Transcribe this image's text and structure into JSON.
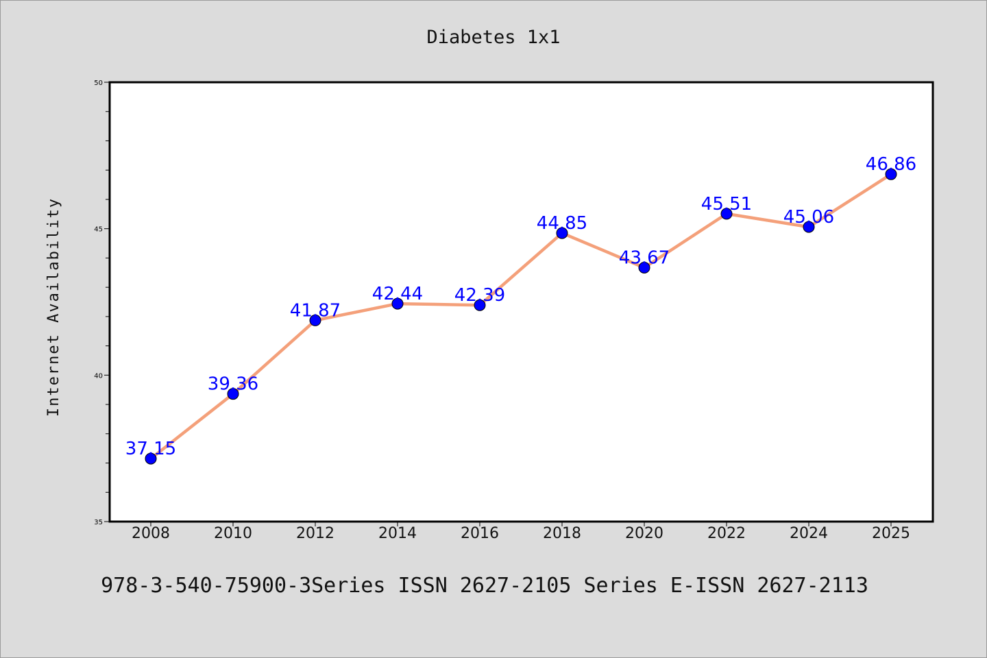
{
  "chart_data": {
    "type": "line",
    "title": "Diabetes 1x1",
    "xlabel": "",
    "ylabel": "Internet Availability",
    "categories": [
      "2008",
      "2010",
      "2012",
      "2014",
      "2016",
      "2018",
      "2020",
      "2022",
      "2024",
      "2025"
    ],
    "series": [
      {
        "values": [
          37.15,
          39.36,
          41.87,
          42.44,
          42.39,
          44.85,
          43.67,
          45.51,
          45.06,
          46.86
        ]
      }
    ],
    "ylim": [
      35,
      50
    ],
    "yticks": [
      "35",
      "40",
      "45",
      "50"
    ],
    "grid": false,
    "line_color": "#f4a07a",
    "marker_color": "#0000ff",
    "label_color": "#0000ff",
    "background": "#dcdcdc",
    "plot_background": "#ffffff"
  },
  "footer": {
    "text": "978-3-540-75900-3Series ISSN 2627-2105 Series E-ISSN 2627-2113"
  }
}
